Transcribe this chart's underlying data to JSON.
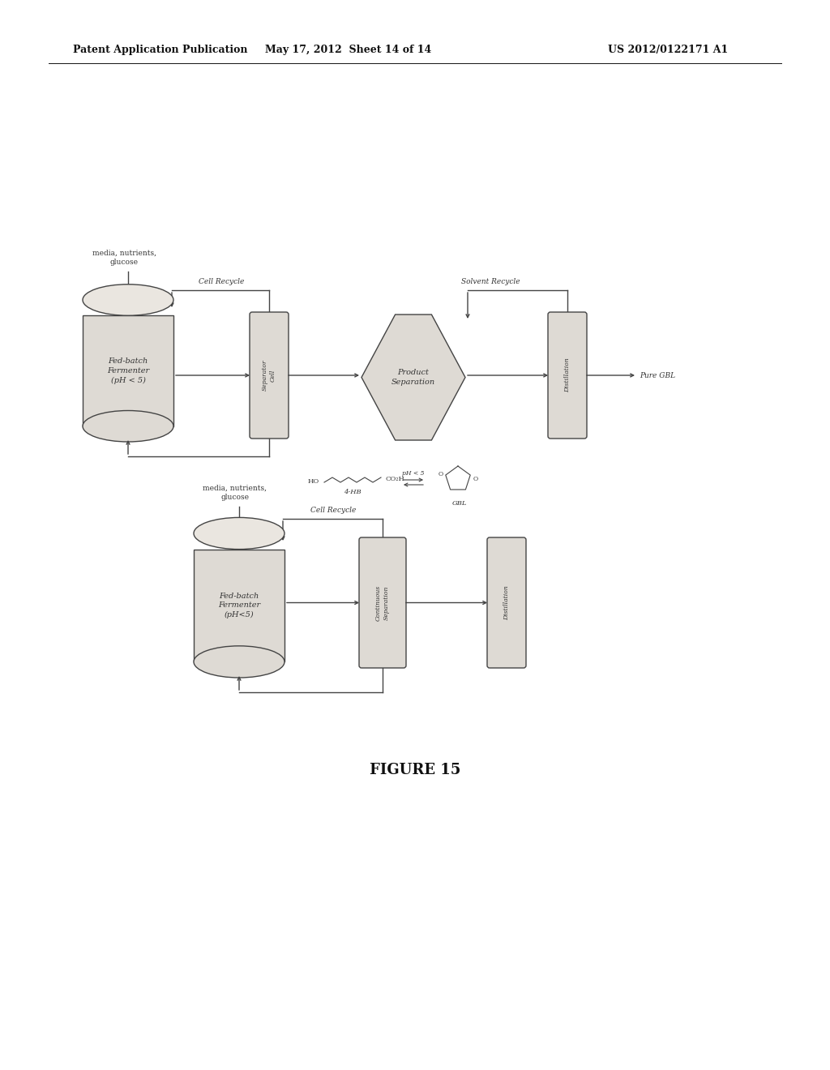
{
  "bg_color": "#ffffff",
  "header_left": "Patent Application Publication",
  "header_mid": "May 17, 2012  Sheet 14 of 14",
  "header_right": "US 2012/0122171 A1",
  "figure_label": "FIGURE 15",
  "top_fermenter_label": "Fed-batch\nFermenter\n(pH < 5)",
  "top_sep_label": "Separator\nCell",
  "top_prod_sep_label": "Product\nSeparation",
  "top_dist_label": "Distillation",
  "top_media_label": "media, nutrients,\nglucose",
  "cell_recycle_label": "Cell Recycle",
  "solvent_recycle_label": "Solvent Recycle",
  "pure_gbl_label": "Pure GBL",
  "chem_label1": "4-HB",
  "chem_label2": "GBL",
  "bot_fermenter_label": "Fed-batch\nFermenter\n(pH<5)",
  "bot_sep_label": "Continuous\nSeparation",
  "bot_dist_label": "Distillation",
  "bot_media_label": "media, nutrients,\nglucose",
  "bot_cell_recycle_label": "Cell Recycle",
  "fill_color": "#dedad4",
  "edge_color": "#444444",
  "text_color": "#333333",
  "line_color": "#444444"
}
